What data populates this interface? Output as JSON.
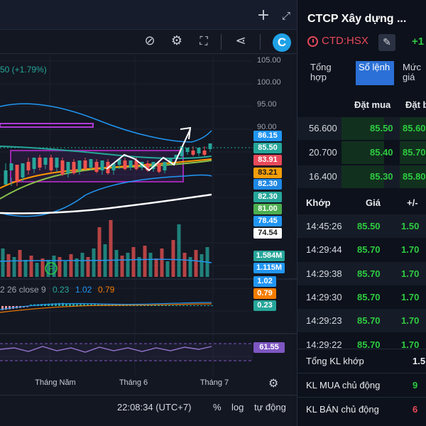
{
  "colors": {
    "up": "#2ecc40",
    "down": "#e8495a",
    "panel": "#131722",
    "accent": "#2b70d6"
  },
  "toolbar": {
    "add_icon": "plus-icon",
    "expand_icon": "expand-icon",
    "alert_icon": "alert-icon",
    "settings_icon": "gear-icon",
    "fullscreen_icon": "fullscreen-icon",
    "share_icon": "share-icon",
    "brand_label": "C"
  },
  "chart": {
    "price_change": "50 (+1.79%)",
    "indicator_label": "2 26 close 9",
    "indicator_values": [
      "0.23",
      "1.02",
      "0.79"
    ],
    "price_ticks": [
      "105.00",
      "100.00",
      "95.00",
      "90.00"
    ],
    "price_badges": [
      {
        "value": "86.15",
        "bg": "#2196f3",
        "fg": "#ffffff"
      },
      {
        "value": "85.50",
        "bg": "#26a69a",
        "fg": "#ffffff"
      },
      {
        "value": "83.91",
        "bg": "#e8495a",
        "fg": "#ffffff"
      },
      {
        "value": "83.21",
        "bg": "#f59e0b",
        "fg": "#1a1a1a"
      },
      {
        "value": "82.30",
        "bg": "#1e88e5",
        "fg": "#ffffff"
      },
      {
        "value": "82.30",
        "bg": "#26a69a",
        "fg": "#ffffff"
      },
      {
        "value": "81.00",
        "bg": "#4caf50",
        "fg": "#ffffff"
      },
      {
        "value": "78.45",
        "bg": "#2196f3",
        "fg": "#ffffff"
      },
      {
        "value": "74.54",
        "bg": "#ffffff",
        "fg": "#1a1a1a"
      }
    ],
    "volume_badges": [
      {
        "value": "1.584M",
        "bg": "#26a69a",
        "fg": "#ffffff"
      },
      {
        "value": "1.115M",
        "bg": "#2196f3",
        "fg": "#ffffff"
      }
    ],
    "macd_badges": [
      {
        "value": "1.02",
        "bg": "#2196f3",
        "fg": "#ffffff"
      },
      {
        "value": "0.79",
        "bg": "#f57c00",
        "fg": "#ffffff"
      },
      {
        "value": "0.23",
        "bg": "#26a69a",
        "fg": "#ffffff"
      }
    ],
    "rsi_badge": {
      "value": "61.55",
      "bg": "#7e57c2",
      "fg": "#ffffff"
    },
    "time_labels": [
      "Tháng Năm",
      "Tháng 6",
      "Tháng 7"
    ],
    "marker_label": "F"
  },
  "bottom_bar": {
    "clock": "22:08:34 (UTC+7)",
    "percent": "%",
    "log": "log",
    "auto": "tự động"
  },
  "info": {
    "company": "CTCP Xây dựng ...",
    "ticker": "CTD:HSX",
    "change": "+1",
    "tabs": [
      "Tổng hợp",
      "Sổ lệnh",
      "Mức giá"
    ],
    "active_tab": 1,
    "orderbook_headers": [
      "Đặt mua",
      "Đặt b"
    ],
    "orderbook": [
      {
        "vol": "56.600",
        "buy": "85.50",
        "sell": "85.60"
      },
      {
        "vol": "20.700",
        "buy": "85.40",
        "sell": "85.70"
      },
      {
        "vol": "16.400",
        "buy": "85.30",
        "sell": "85.80"
      }
    ],
    "trade_headers": [
      "Khớp",
      "Giá",
      "+/-"
    ],
    "trades": [
      {
        "time": "14:45:26",
        "price": "85.50",
        "chg": "1.50"
      },
      {
        "time": "14:29:44",
        "price": "85.70",
        "chg": "1.70"
      },
      {
        "time": "14:29:38",
        "price": "85.70",
        "chg": "1.70"
      },
      {
        "time": "14:29:30",
        "price": "85.70",
        "chg": "1.70"
      },
      {
        "time": "14:29:23",
        "price": "85.70",
        "chg": "1.70"
      },
      {
        "time": "14:29:22",
        "price": "85.70",
        "chg": "1.70"
      }
    ],
    "summary": [
      {
        "label": "Tổng KL khớp",
        "value": "1.5",
        "color": "#e8eaee"
      },
      {
        "label": "KL MUA chủ động",
        "value": "9",
        "color": "#2ecc40"
      },
      {
        "label": "KL BÁN chủ động",
        "value": "6",
        "color": "#e8495a"
      }
    ]
  }
}
